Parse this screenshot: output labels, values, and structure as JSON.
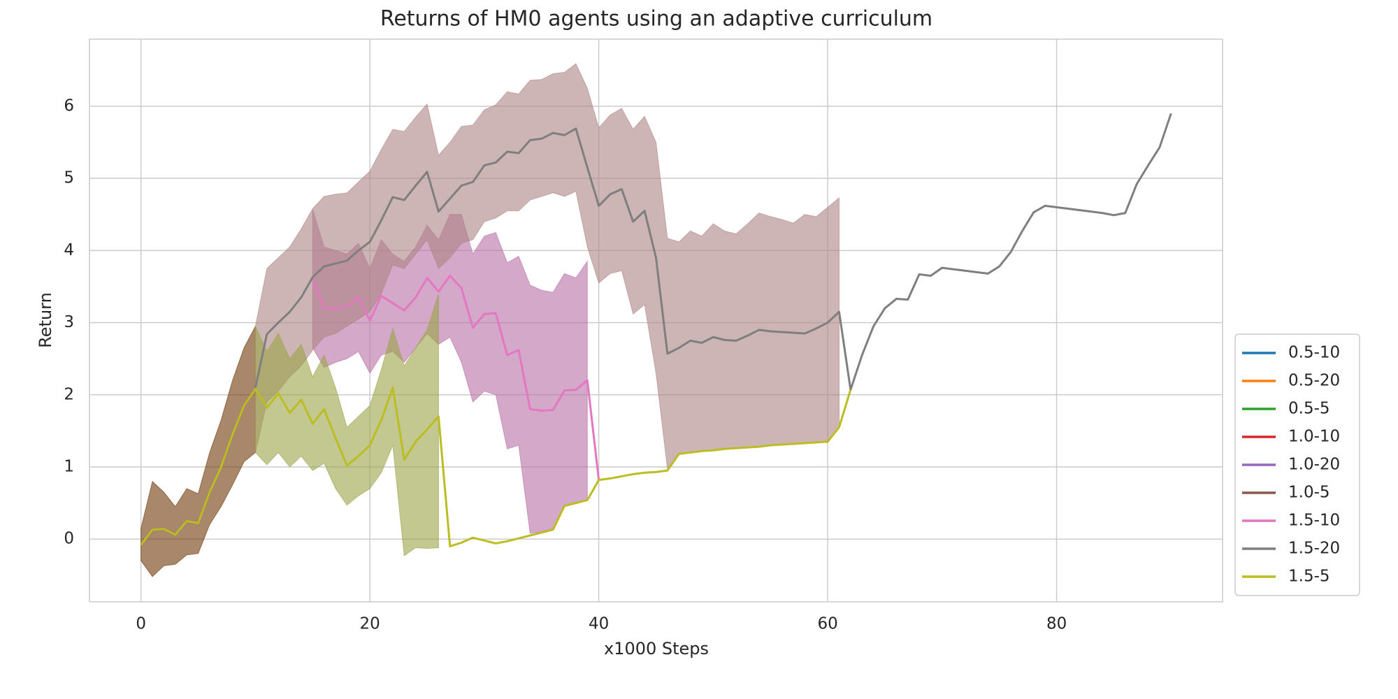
{
  "chart_data": {
    "type": "line",
    "title": "Returns of HM0 agents using an adaptive curriculum",
    "x_label": "x1000 Steps",
    "y_label": "Return",
    "xlim": [
      -4.5,
      94.5
    ],
    "ylim": [
      -0.87,
      6.93
    ],
    "xticks": [
      0,
      20,
      40,
      60,
      80
    ],
    "yticks": [
      0,
      1,
      2,
      3,
      4,
      5,
      6
    ],
    "grid": true,
    "legend": "lower right",
    "band_opacity": 0.6,
    "series": [
      {
        "name": "0.5-10",
        "color": "#1f77b4"
      },
      {
        "name": "0.5-20",
        "color": "#ff7f0e"
      },
      {
        "name": "0.5-5",
        "color": "#2ca02c"
      },
      {
        "name": "1.0-10",
        "color": "#d62728"
      },
      {
        "name": "1.0-20",
        "color": "#9467bd"
      },
      {
        "name": "1.0-5",
        "color": "#8c564b",
        "band_color": "#6e3707",
        "x": [
          0,
          1,
          2,
          3,
          4,
          5,
          6,
          7,
          8,
          9,
          10
        ],
        "values": [
          -0.08,
          0.13,
          0.14,
          0.06,
          0.25,
          0.22,
          0.65,
          1.0,
          1.45,
          1.85,
          2.08
        ],
        "upper": [
          0.15,
          0.8,
          0.65,
          0.45,
          0.7,
          0.63,
          1.2,
          1.65,
          2.2,
          2.65,
          2.95
        ],
        "lower": [
          -0.3,
          -0.52,
          -0.37,
          -0.35,
          -0.22,
          -0.2,
          0.2,
          0.45,
          0.75,
          1.07,
          1.2
        ]
      },
      {
        "name": "1.5-10",
        "color": "#e377c2",
        "band_color": "#b76ea3",
        "x": [
          15,
          16,
          17,
          18,
          19,
          20,
          21,
          22,
          23,
          24,
          25,
          26,
          27,
          28,
          29,
          30,
          31,
          32,
          33,
          34,
          35,
          36,
          37,
          38,
          39,
          40
        ],
        "values": [
          3.6,
          3.2,
          3.2,
          3.22,
          3.35,
          3.03,
          3.37,
          3.27,
          3.17,
          3.35,
          3.62,
          3.43,
          3.65,
          3.48,
          2.93,
          3.12,
          3.13,
          2.55,
          2.62,
          1.8,
          1.78,
          1.79,
          2.06,
          2.07,
          2.2,
          0.82
        ],
        "upper": [
          4.57,
          4.05,
          4.0,
          3.95,
          4.1,
          3.75,
          4.15,
          3.95,
          3.85,
          4.05,
          4.35,
          4.15,
          4.5,
          4.5,
          3.95,
          4.2,
          4.25,
          3.83,
          3.92,
          3.52,
          3.45,
          3.42,
          3.68,
          3.62,
          3.85,
          null
        ],
        "lower": [
          2.65,
          2.38,
          2.45,
          2.5,
          2.6,
          2.3,
          2.55,
          2.6,
          2.45,
          2.65,
          2.85,
          2.7,
          2.8,
          2.45,
          1.9,
          2.05,
          2.0,
          1.25,
          1.3,
          0.08,
          0.1,
          0.15,
          0.45,
          0.5,
          0.55,
          null
        ]
      },
      {
        "name": "1.5-20",
        "color": "#7f7f7f",
        "band_color": "#ad8484",
        "x": [
          10,
          11,
          12,
          13,
          14,
          15,
          16,
          17,
          18,
          19,
          20,
          21,
          22,
          23,
          24,
          25,
          26,
          27,
          28,
          29,
          30,
          31,
          32,
          33,
          34,
          35,
          36,
          37,
          38,
          39,
          40,
          41,
          42,
          43,
          44,
          45,
          46,
          47,
          48,
          49,
          50,
          51,
          52,
          53,
          54,
          55,
          56,
          57,
          58,
          59,
          60,
          61,
          62,
          63,
          64,
          65,
          66,
          67,
          68,
          69,
          70,
          71,
          72,
          73,
          74,
          75,
          76,
          77,
          78,
          79,
          80,
          81,
          82,
          83,
          84,
          85,
          86,
          87,
          88,
          89,
          90
        ],
        "values": [
          2.1,
          2.84,
          3.0,
          3.15,
          3.35,
          3.63,
          3.78,
          3.82,
          3.86,
          4.0,
          4.12,
          4.42,
          4.74,
          4.7,
          4.9,
          5.09,
          4.54,
          4.72,
          4.9,
          4.95,
          5.18,
          5.22,
          5.37,
          5.35,
          5.53,
          5.55,
          5.63,
          5.6,
          5.69,
          5.15,
          4.62,
          4.78,
          4.85,
          4.4,
          4.55,
          3.9,
          2.57,
          2.65,
          2.75,
          2.72,
          2.8,
          2.76,
          2.75,
          2.82,
          2.9,
          2.88,
          2.87,
          2.86,
          2.85,
          2.92,
          3.0,
          3.15,
          2.07,
          2.55,
          2.95,
          3.2,
          3.33,
          3.32,
          3.67,
          3.65,
          3.76,
          3.74,
          3.72,
          3.7,
          3.68,
          3.78,
          3.98,
          4.27,
          4.53,
          4.62,
          4.6,
          4.58,
          4.56,
          4.54,
          4.52,
          4.49,
          4.52,
          4.92,
          5.18,
          5.43,
          5.9
        ],
        "upper": [
          2.95,
          3.75,
          3.9,
          4.05,
          4.3,
          4.58,
          4.75,
          4.78,
          4.8,
          4.95,
          5.1,
          5.4,
          5.68,
          5.65,
          5.85,
          6.03,
          5.32,
          5.5,
          5.72,
          5.74,
          5.95,
          6.02,
          6.2,
          6.17,
          6.36,
          6.37,
          6.45,
          6.47,
          6.59,
          6.25,
          5.7,
          5.88,
          5.97,
          5.68,
          5.86,
          5.5,
          4.17,
          4.12,
          4.27,
          4.2,
          4.37,
          4.27,
          4.23,
          4.37,
          4.52,
          4.47,
          4.43,
          4.38,
          4.5,
          4.47,
          4.6,
          4.73,
          null,
          null,
          null,
          null,
          null,
          null,
          null,
          null,
          null,
          null,
          null,
          null,
          null,
          null,
          null,
          null,
          null,
          null,
          null,
          null,
          null,
          null,
          null,
          null,
          null,
          null,
          null,
          null,
          null
        ],
        "lower": [
          1.2,
          1.9,
          2.05,
          2.25,
          2.4,
          2.62,
          2.8,
          2.85,
          2.95,
          3.05,
          3.15,
          3.4,
          3.8,
          3.75,
          3.95,
          4.15,
          3.75,
          3.9,
          4.1,
          4.15,
          4.4,
          4.45,
          4.55,
          4.55,
          4.7,
          4.75,
          4.8,
          4.75,
          4.82,
          4.05,
          3.55,
          3.68,
          3.72,
          3.12,
          3.25,
          2.3,
          0.97,
          1.18,
          1.2,
          1.22,
          1.23,
          1.25,
          1.26,
          1.27,
          1.28,
          1.3,
          1.31,
          1.32,
          1.33,
          1.34,
          1.35,
          1.55,
          null,
          null,
          null,
          null,
          null,
          null,
          null,
          null,
          null,
          null,
          null,
          null,
          null,
          null,
          null,
          null,
          null,
          null,
          null,
          null,
          null,
          null,
          null,
          null,
          null,
          null,
          null,
          null,
          null
        ]
      },
      {
        "name": "1.5-5",
        "color": "#bcbd22",
        "band_color": "#99a346",
        "x": [
          0,
          1,
          2,
          3,
          4,
          5,
          6,
          7,
          8,
          9,
          10,
          11,
          12,
          13,
          14,
          15,
          16,
          17,
          18,
          19,
          20,
          21,
          22,
          23,
          24,
          25,
          26,
          27,
          28,
          29,
          30,
          31,
          32,
          33,
          34,
          35,
          36,
          37,
          38,
          39,
          40,
          41,
          42,
          43,
          44,
          45,
          46,
          47,
          48,
          49,
          50,
          51,
          52,
          53,
          54,
          55,
          56,
          57,
          58,
          59,
          60,
          61,
          62
        ],
        "values": [
          -0.08,
          0.13,
          0.14,
          0.06,
          0.25,
          0.22,
          0.65,
          1.0,
          1.45,
          1.85,
          2.08,
          1.82,
          2.02,
          1.75,
          1.93,
          1.6,
          1.8,
          1.4,
          1.02,
          1.15,
          1.3,
          1.65,
          2.1,
          1.1,
          1.35,
          1.52,
          1.7,
          -0.1,
          -0.05,
          0.02,
          -0.02,
          -0.06,
          -0.03,
          0.01,
          0.05,
          0.09,
          0.13,
          0.46,
          0.5,
          0.54,
          0.82,
          0.84,
          0.87,
          0.9,
          0.92,
          0.93,
          0.95,
          1.18,
          1.2,
          1.22,
          1.23,
          1.25,
          1.26,
          1.27,
          1.28,
          1.3,
          1.31,
          1.32,
          1.33,
          1.34,
          1.35,
          1.55,
          2.07
        ],
        "upper": [
          null,
          null,
          null,
          null,
          null,
          null,
          null,
          null,
          null,
          null,
          2.95,
          2.6,
          2.85,
          2.5,
          2.7,
          2.25,
          2.55,
          2.1,
          1.55,
          1.7,
          1.85,
          2.35,
          2.92,
          2.4,
          2.65,
          2.9,
          3.4,
          null,
          null,
          null,
          null,
          null,
          null,
          null,
          null,
          null,
          null,
          null,
          null,
          null,
          null,
          null,
          null,
          null,
          null,
          null,
          null,
          null,
          null,
          null,
          null,
          null,
          null,
          null,
          null,
          null,
          null,
          null,
          null,
          null,
          null,
          null,
          null
        ],
        "lower": [
          null,
          null,
          null,
          null,
          null,
          null,
          null,
          null,
          null,
          null,
          1.2,
          1.03,
          1.2,
          1.0,
          1.15,
          0.95,
          1.05,
          0.7,
          0.47,
          0.6,
          0.7,
          0.92,
          1.3,
          -0.23,
          -0.12,
          -0.13,
          -0.12,
          null,
          null,
          null,
          null,
          null,
          null,
          null,
          null,
          null,
          null,
          null,
          null,
          null,
          null,
          null,
          null,
          null,
          null,
          null,
          null,
          null,
          null,
          null,
          null,
          null,
          null,
          null,
          null,
          null,
          null,
          null,
          null,
          null,
          null,
          null,
          null
        ]
      }
    ]
  }
}
